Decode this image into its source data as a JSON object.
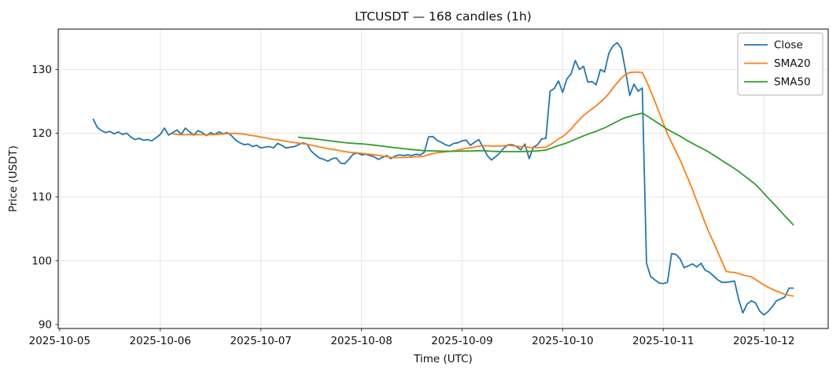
{
  "figure": {
    "title": "LTCUSDT — 168 candles (1h)"
  },
  "chart_data": {
    "type": "line",
    "title": "LTCUSDT — 168 candles (1h)",
    "xlabel": "Time (UTC)",
    "ylabel": "Price (USDT)",
    "x_start": "2025-10-05 08:00",
    "x_interval": "1h",
    "num_points": 168,
    "x_tick_labels": [
      "2025-10-05",
      "2025-10-06",
      "2025-10-07",
      "2025-10-08",
      "2025-10-09",
      "2025-10-10",
      "2025-10-11",
      "2025-10-12"
    ],
    "y_ticks": [
      90,
      100,
      110,
      120,
      130
    ],
    "ylim_approx": [
      89.4,
      136.3
    ],
    "grid": true,
    "legend_position": "upper right",
    "background_color": "#ffffff",
    "grid_color": "#e6e6e6",
    "spine_color": "#333333",
    "text_color": "#111111",
    "series": [
      {
        "name": "Close",
        "color": "#1f77b4",
        "kind": "raw",
        "values": [
          122.2,
          120.9,
          120.4,
          120.1,
          120.3,
          119.9,
          120.2,
          119.8,
          120.0,
          119.4,
          119.0,
          119.2,
          118.9,
          119.0,
          118.8,
          119.3,
          119.8,
          120.8,
          119.7,
          120.1,
          120.5,
          119.8,
          120.8,
          120.2,
          119.7,
          120.4,
          120.1,
          119.6,
          120.1,
          119.8,
          120.2,
          119.9,
          120.1,
          119.6,
          118.9,
          118.5,
          118.2,
          118.3,
          117.9,
          118.1,
          117.7,
          117.8,
          117.9,
          117.7,
          118.4,
          118.1,
          117.7,
          117.8,
          117.9,
          118.2,
          118.5,
          118.3,
          117.2,
          116.6,
          116.1,
          115.9,
          115.6,
          116.0,
          116.1,
          115.3,
          115.2,
          115.9,
          116.7,
          116.9,
          116.6,
          116.7,
          116.5,
          116.3,
          115.9,
          116.2,
          116.5,
          116.0,
          116.4,
          116.6,
          116.5,
          116.6,
          116.5,
          116.7,
          116.6,
          117.0,
          119.4,
          119.5,
          118.9,
          118.6,
          118.2,
          118.0,
          118.4,
          118.5,
          118.8,
          118.9,
          118.1,
          118.6,
          119.0,
          117.8,
          116.5,
          115.8,
          116.3,
          116.9,
          117.7,
          118.2,
          118.2,
          117.9,
          117.4,
          118.3,
          116.0,
          117.8,
          118.2,
          119.1,
          119.2,
          126.6,
          127.0,
          128.2,
          126.4,
          128.5,
          129.3,
          131.4,
          130.0,
          130.5,
          128.0,
          128.1,
          127.6,
          130.0,
          129.6,
          132.5,
          133.7,
          134.2,
          133.3,
          129.8,
          125.9,
          127.7,
          126.6,
          127.1,
          99.6,
          97.5,
          97.0,
          96.5,
          96.4,
          96.6,
          101.1,
          101.0,
          100.3,
          98.9,
          99.2,
          99.5,
          99.0,
          99.6,
          98.5,
          98.2,
          97.6,
          97.0,
          96.6,
          96.6,
          96.7,
          96.8,
          93.9,
          91.8,
          93.2,
          93.7,
          93.4,
          92.1,
          91.5,
          92.0,
          92.8,
          93.7,
          94.0,
          94.3,
          95.7,
          95.7
        ]
      },
      {
        "name": "SMA20",
        "color": "#ff7f0e",
        "kind": "sma",
        "period": 20
      },
      {
        "name": "SMA50",
        "color": "#2ca02c",
        "kind": "sma",
        "period": 50
      }
    ]
  }
}
